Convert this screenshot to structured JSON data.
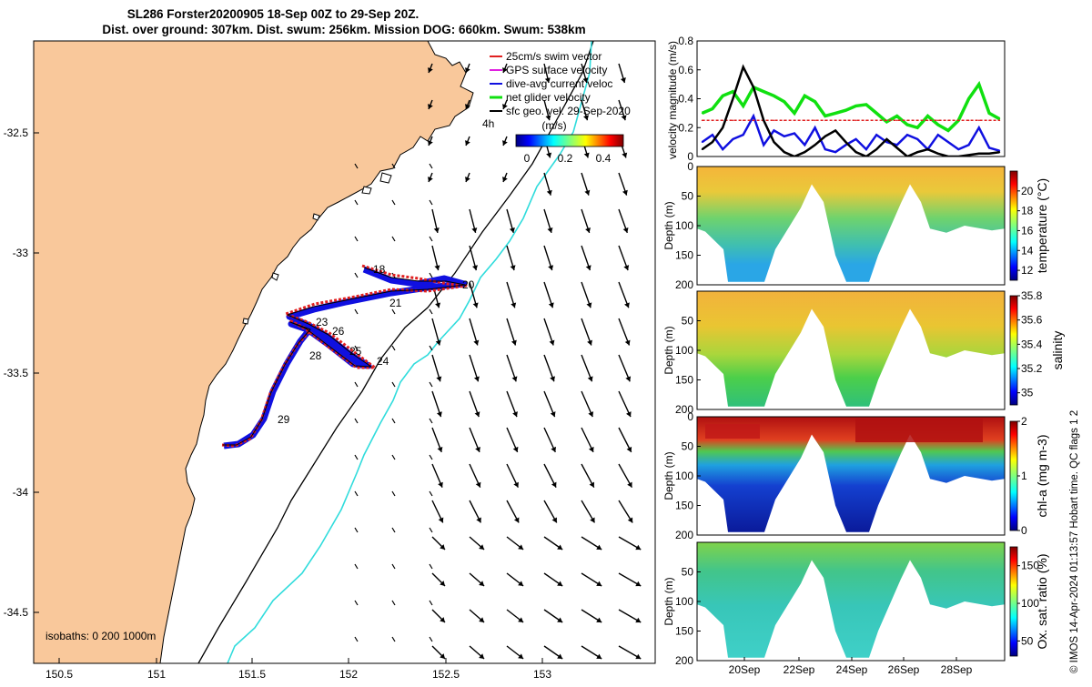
{
  "figure": {
    "title_line1": "SL286 Forster20200905 18-Sep 00Z to 29-Sep 20Z.",
    "title_line2": "Dist. over ground: 307km. Dist. swum: 256km. Mission DOG: 660km. Swum: 538km",
    "credit": "© IMOS 14-Apr-2024 01:13:57 Hobart time. QC flags 1  2"
  },
  "map": {
    "x_ticks": [
      "150.5",
      "151",
      "151.5",
      "152",
      "152.5",
      "153"
    ],
    "y_ticks": [
      "-32.5",
      "-33",
      "-33.5",
      "-34",
      "-34.5"
    ],
    "legend": [
      {
        "label": "25cm/s swim vector",
        "color": "#e02020"
      },
      {
        "label": "GPS surface velocity",
        "color": "#e020e0"
      },
      {
        "label": "dive-avg current veloc",
        "color": "#1010e0"
      },
      {
        "label": "net glider velocity",
        "color": "#10e010"
      },
      {
        "label": "sfc geo. vel. 29-Sep-2020",
        "color": "#000000"
      }
    ],
    "colorbar_label": "(m/s)",
    "colorbar_ticks": [
      "0",
      "0.2",
      "0.4"
    ],
    "time_marker": "4h",
    "isobath_label": "isobaths: 0   200  1000m",
    "day_labels": [
      "18",
      "20",
      "21",
      "23",
      "26",
      "25",
      "24",
      "28",
      "29"
    ],
    "colors": {
      "land": "#f9c89b",
      "isobath_200": "#000000",
      "isobath_1000": "#30dcdc",
      "track": "#e02020",
      "track_current": "#1010e0"
    }
  },
  "chart_data": [
    {
      "type": "line",
      "title": "",
      "xlabel": "",
      "ylabel": "velocity magnitude (m/s)",
      "xlim": [
        18,
        30
      ],
      "ylim": [
        0,
        0.8
      ],
      "y_ticks": [
        "0",
        "0.2",
        "0.4",
        "0.6",
        "0.8"
      ],
      "x": [
        18.2,
        18.6,
        19.0,
        19.4,
        19.8,
        20.2,
        20.6,
        21.0,
        21.4,
        21.8,
        22.2,
        22.6,
        23.0,
        23.4,
        23.8,
        24.2,
        24.6,
        25.0,
        25.4,
        25.8,
        26.2,
        26.6,
        27.0,
        27.4,
        27.8,
        28.2,
        28.6,
        29.0,
        29.4,
        29.8
      ],
      "series": [
        {
          "name": "net glider velocity",
          "color": "#10e010",
          "values": [
            0.3,
            0.33,
            0.42,
            0.45,
            0.35,
            0.48,
            0.45,
            0.42,
            0.38,
            0.3,
            0.42,
            0.38,
            0.28,
            0.3,
            0.32,
            0.35,
            0.36,
            0.3,
            0.24,
            0.28,
            0.22,
            0.2,
            0.28,
            0.22,
            0.18,
            0.25,
            0.4,
            0.5,
            0.3,
            0.26
          ]
        },
        {
          "name": "dive-avg current veloc",
          "color": "#1010e0",
          "values": [
            0.1,
            0.15,
            0.05,
            0.12,
            0.15,
            0.28,
            0.08,
            0.18,
            0.14,
            0.16,
            0.08,
            0.2,
            0.05,
            0.03,
            0.08,
            0.12,
            0.05,
            0.15,
            0.1,
            0.08,
            0.15,
            0.12,
            0.05,
            0.15,
            0.1,
            0.05,
            0.08,
            0.2,
            0.06,
            0.04
          ]
        },
        {
          "name": "25cm/s swim vector",
          "color": "#e02020",
          "values": [
            0.25,
            0.25,
            0.25,
            0.25,
            0.25,
            0.25,
            0.25,
            0.25,
            0.25,
            0.25,
            0.25,
            0.25,
            0.25,
            0.25,
            0.25,
            0.25,
            0.25,
            0.25,
            0.25,
            0.25,
            0.25,
            0.25,
            0.25,
            0.25,
            0.25,
            0.25,
            0.25,
            0.25,
            0.25,
            0.25
          ]
        },
        {
          "name": "sfc geo. vel.",
          "color": "#000000",
          "values": [
            0.05,
            0.1,
            0.2,
            0.4,
            0.62,
            0.48,
            0.25,
            0.1,
            0.03,
            0.0,
            0.03,
            0.08,
            0.14,
            0.18,
            0.1,
            0.03,
            0.0,
            0.05,
            0.12,
            0.06,
            0.0,
            0.03,
            0.05,
            0.02,
            0.0,
            0.0,
            0.01,
            0.02,
            0.02,
            0.03
          ]
        }
      ]
    },
    {
      "type": "heatmap",
      "ylabel": "Depth (m)",
      "colorbar_label": "temperature (°C)",
      "ylim": [
        200,
        0
      ],
      "y_ticks": [
        "0",
        "50",
        "100",
        "150",
        "200"
      ],
      "colorbar_ticks": [
        "12",
        "14",
        "16",
        "18",
        "20"
      ],
      "clim": [
        11,
        22
      ]
    },
    {
      "type": "heatmap",
      "ylabel": "Depth (m)",
      "colorbar_label": "salinity",
      "ylim": [
        200,
        0
      ],
      "y_ticks": [
        "50",
        "100",
        "150",
        "200"
      ],
      "colorbar_ticks": [
        "35",
        "35.2",
        "35.4",
        "35.6",
        "35.8"
      ],
      "clim": [
        34.9,
        35.8
      ]
    },
    {
      "type": "heatmap",
      "ylabel": "Depth (m)",
      "colorbar_label": "chl-a (mg m-3)",
      "ylim": [
        200,
        0
      ],
      "y_ticks": [
        "0",
        "50",
        "100",
        "150",
        "200"
      ],
      "colorbar_ticks": [
        "0",
        "1",
        "2"
      ],
      "clim": [
        0,
        2
      ]
    },
    {
      "type": "heatmap",
      "ylabel": "Depth (m)",
      "colorbar_label": "Ox. sat. ratio (%)",
      "ylim": [
        200,
        0
      ],
      "y_ticks": [
        "50",
        "100",
        "150",
        "200"
      ],
      "x_ticks": [
        "20Sep",
        "22Sep",
        "24Sep",
        "26Sep",
        "28Sep"
      ],
      "colorbar_ticks": [
        "50",
        "100",
        "150"
      ],
      "clim": [
        30,
        175
      ]
    }
  ]
}
